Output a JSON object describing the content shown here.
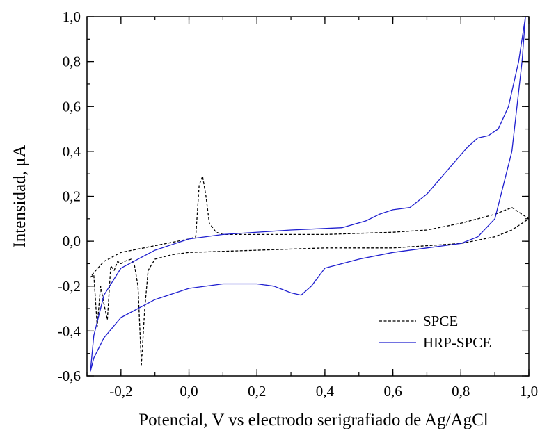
{
  "chart_data": {
    "type": "line",
    "xlabel": "Potencial, V vs electrodo serigrafiado de Ag/AgCl",
    "ylabel": "Intensidad, μA",
    "xlim": [
      -0.3,
      1.0
    ],
    "ylim": [
      -0.6,
      1.0
    ],
    "x_ticks": [
      "-0,2",
      "0,0",
      "0,2",
      "0,4",
      "0,6",
      "0,8",
      "1,0"
    ],
    "y_ticks": [
      "-0,6",
      "-0,4",
      "-0,2",
      "0,0",
      "0,2",
      "0,4",
      "0,6",
      "0,8",
      "1,0"
    ],
    "legend_position": "bottom-right",
    "grid": false,
    "series": [
      {
        "name": "SPCE",
        "color": "#000000",
        "dash": "dashed",
        "points": [
          [
            -0.29,
            -0.16
          ],
          [
            -0.28,
            -0.15
          ],
          [
            -0.27,
            -0.38
          ],
          [
            -0.26,
            -0.2
          ],
          [
            -0.25,
            -0.28
          ],
          [
            -0.24,
            -0.35
          ],
          [
            -0.23,
            -0.11
          ],
          [
            -0.22,
            -0.13
          ],
          [
            -0.21,
            -0.09
          ],
          [
            -0.2,
            -0.1
          ],
          [
            -0.19,
            -0.09
          ],
          [
            -0.17,
            -0.08
          ],
          [
            -0.16,
            -0.11
          ],
          [
            -0.15,
            -0.2
          ],
          [
            -0.14,
            -0.55
          ],
          [
            -0.13,
            -0.3
          ],
          [
            -0.12,
            -0.13
          ],
          [
            -0.1,
            -0.08
          ],
          [
            -0.05,
            -0.06
          ],
          [
            0.0,
            -0.05
          ],
          [
            0.2,
            -0.04
          ],
          [
            0.4,
            -0.03
          ],
          [
            0.6,
            -0.03
          ],
          [
            0.8,
            -0.01
          ],
          [
            0.9,
            0.02
          ],
          [
            0.95,
            0.05
          ],
          [
            1.0,
            0.1
          ],
          [
            0.95,
            0.15
          ],
          [
            0.9,
            0.12
          ],
          [
            0.8,
            0.08
          ],
          [
            0.7,
            0.05
          ],
          [
            0.6,
            0.04
          ],
          [
            0.4,
            0.03
          ],
          [
            0.2,
            0.03
          ],
          [
            0.1,
            0.03
          ],
          [
            0.08,
            0.04
          ],
          [
            0.06,
            0.08
          ],
          [
            0.05,
            0.2
          ],
          [
            0.04,
            0.29
          ],
          [
            0.03,
            0.25
          ],
          [
            0.02,
            0.02
          ],
          [
            0.0,
            0.01
          ],
          [
            -0.1,
            -0.02
          ],
          [
            -0.2,
            -0.05
          ],
          [
            -0.25,
            -0.09
          ],
          [
            -0.28,
            -0.14
          ],
          [
            -0.29,
            -0.16
          ]
        ]
      },
      {
        "name": "HRP-SPCE",
        "color": "#1f1fcf",
        "dash": "solid",
        "points": [
          [
            -0.29,
            -0.58
          ],
          [
            -0.28,
            -0.52
          ],
          [
            -0.25,
            -0.43
          ],
          [
            -0.2,
            -0.34
          ],
          [
            -0.1,
            -0.26
          ],
          [
            0.0,
            -0.21
          ],
          [
            0.1,
            -0.19
          ],
          [
            0.2,
            -0.19
          ],
          [
            0.25,
            -0.2
          ],
          [
            0.3,
            -0.23
          ],
          [
            0.33,
            -0.24
          ],
          [
            0.36,
            -0.2
          ],
          [
            0.4,
            -0.12
          ],
          [
            0.5,
            -0.08
          ],
          [
            0.6,
            -0.05
          ],
          [
            0.7,
            -0.03
          ],
          [
            0.8,
            -0.01
          ],
          [
            0.85,
            0.02
          ],
          [
            0.9,
            0.1
          ],
          [
            0.95,
            0.4
          ],
          [
            0.98,
            0.8
          ],
          [
            0.99,
            1.0
          ],
          [
            0.97,
            0.8
          ],
          [
            0.94,
            0.6
          ],
          [
            0.91,
            0.5
          ],
          [
            0.88,
            0.47
          ],
          [
            0.85,
            0.46
          ],
          [
            0.82,
            0.42
          ],
          [
            0.78,
            0.35
          ],
          [
            0.7,
            0.21
          ],
          [
            0.65,
            0.15
          ],
          [
            0.6,
            0.14
          ],
          [
            0.56,
            0.12
          ],
          [
            0.52,
            0.09
          ],
          [
            0.45,
            0.06
          ],
          [
            0.3,
            0.05
          ],
          [
            0.1,
            0.03
          ],
          [
            0.0,
            0.01
          ],
          [
            -0.1,
            -0.04
          ],
          [
            -0.2,
            -0.12
          ],
          [
            -0.25,
            -0.24
          ],
          [
            -0.28,
            -0.42
          ],
          [
            -0.29,
            -0.58
          ]
        ]
      }
    ]
  }
}
